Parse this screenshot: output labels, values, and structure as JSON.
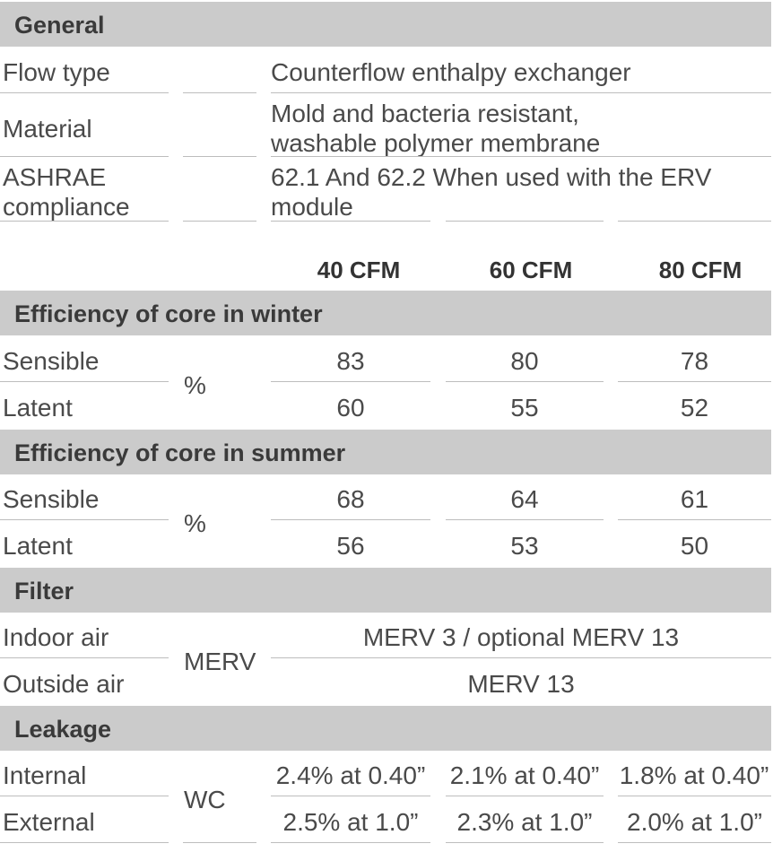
{
  "general": {
    "title": "General",
    "rows": [
      {
        "label": "Flow type",
        "value": "Counterflow enthalpy exchanger"
      },
      {
        "label": "Material",
        "value_line1": "Mold and bacteria resistant,",
        "value_line2": "washable polymer membrane"
      },
      {
        "label_line1": "ASHRAE",
        "label_line2": "compliance",
        "value_line1": "62.1 And 62.2 When used with the ERV",
        "value_line2": "module"
      }
    ]
  },
  "columns": [
    "40 CFM",
    "60 CFM",
    "80 CFM"
  ],
  "winter": {
    "title": "Efficiency  of core in winter",
    "unit": "%",
    "rows": [
      {
        "label": "Sensible",
        "values": [
          "83",
          "80",
          "78"
        ]
      },
      {
        "label": "Latent",
        "values": [
          "60",
          "55",
          "52"
        ]
      }
    ]
  },
  "summer": {
    "title": "Efficiency  of core in summer",
    "unit": "%",
    "rows": [
      {
        "label": "Sensible",
        "values": [
          "68",
          "64",
          "61"
        ]
      },
      {
        "label": "Latent",
        "values": [
          "56",
          "53",
          "50"
        ]
      }
    ]
  },
  "filter": {
    "title": "Filter",
    "unit": "MERV",
    "rows": [
      {
        "label": "Indoor air",
        "value": "MERV 3 / optional MERV 13"
      },
      {
        "label": "Outside air",
        "value": "MERV 13"
      }
    ]
  },
  "leakage": {
    "title": "Leakage",
    "unit": "WC",
    "rows": [
      {
        "label": "Internal",
        "values": [
          "2.4% at 0.40”",
          "2.1% at 0.40”",
          "1.8% at 0.40”"
        ]
      },
      {
        "label": "External",
        "values": [
          "2.5% at 1.0”",
          "2.3% at 1.0”",
          "2.0% at 1.0”"
        ]
      }
    ]
  }
}
